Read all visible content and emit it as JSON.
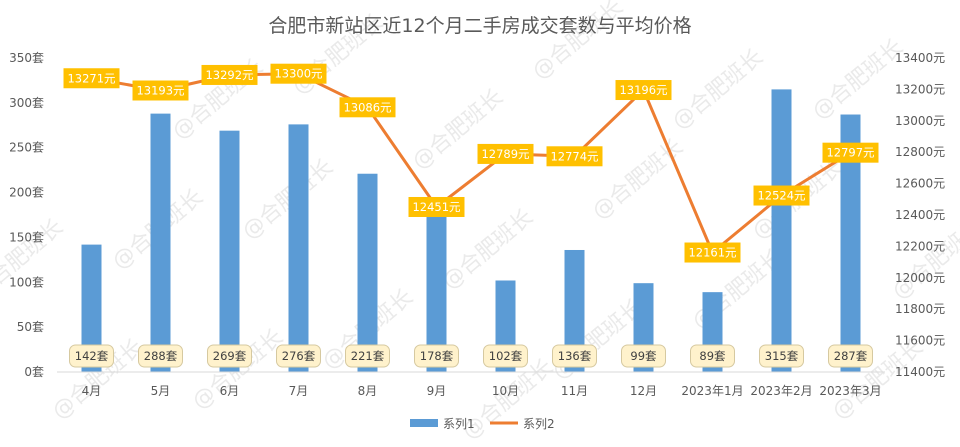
{
  "chart_data": {
    "type": "bar+line",
    "title": "合肥市新站区近12个月二手房成交套数与平均价格",
    "categories": [
      "4月",
      "5月",
      "6月",
      "7月",
      "8月",
      "9月",
      "10月",
      "11月",
      "12月",
      "2023年1月",
      "2023年2月",
      "2023年3月"
    ],
    "series": [
      {
        "name": "系列1",
        "type": "bar",
        "axis": "left",
        "values": [
          142,
          288,
          269,
          276,
          221,
          178,
          102,
          136,
          99,
          89,
          315,
          287
        ],
        "labels": [
          "142套",
          "288套",
          "269套",
          "276套",
          "221套",
          "178套",
          "102套",
          "136套",
          "99套",
          "89套",
          "315套",
          "287套"
        ],
        "color": "#5b9bd5"
      },
      {
        "name": "系列2",
        "type": "line",
        "axis": "right",
        "values": [
          13271,
          13193,
          13292,
          13300,
          13086,
          12451,
          12789,
          12774,
          13196,
          12161,
          12524,
          12797
        ],
        "labels": [
          "13271元",
          "13193元",
          "13292元",
          "13300元",
          "13086元",
          "12451元",
          "12789元",
          "12774元",
          "13196元",
          "12161元",
          "12524元",
          "12797元"
        ],
        "color": "#ed7d31"
      }
    ],
    "y_left": {
      "range": [
        0,
        350
      ],
      "ticks": [
        0,
        50,
        100,
        150,
        200,
        250,
        300,
        350
      ],
      "tick_labels": [
        "0套",
        "50套",
        "100套",
        "150套",
        "200套",
        "250套",
        "300套",
        "350套"
      ]
    },
    "y_right": {
      "range": [
        11400,
        13400
      ],
      "ticks": [
        11400,
        11600,
        11800,
        12000,
        12200,
        12400,
        12600,
        12800,
        13000,
        13200,
        13400
      ],
      "tick_labels": [
        "11400元",
        "11600元",
        "11800元",
        "12000元",
        "12200元",
        "12400元",
        "12600元",
        "12800元",
        "13000元",
        "13200元",
        "13400元"
      ]
    },
    "grid": false,
    "legend": "bottom",
    "colors": {
      "bar": "#5b9bd5",
      "line": "#ed7d31",
      "line_label_bg": "#ffc000",
      "bar_label_bg": "#fff2cc",
      "bar_label_border": "#d6c9a0"
    }
  },
  "watermark": "@合肥班长"
}
